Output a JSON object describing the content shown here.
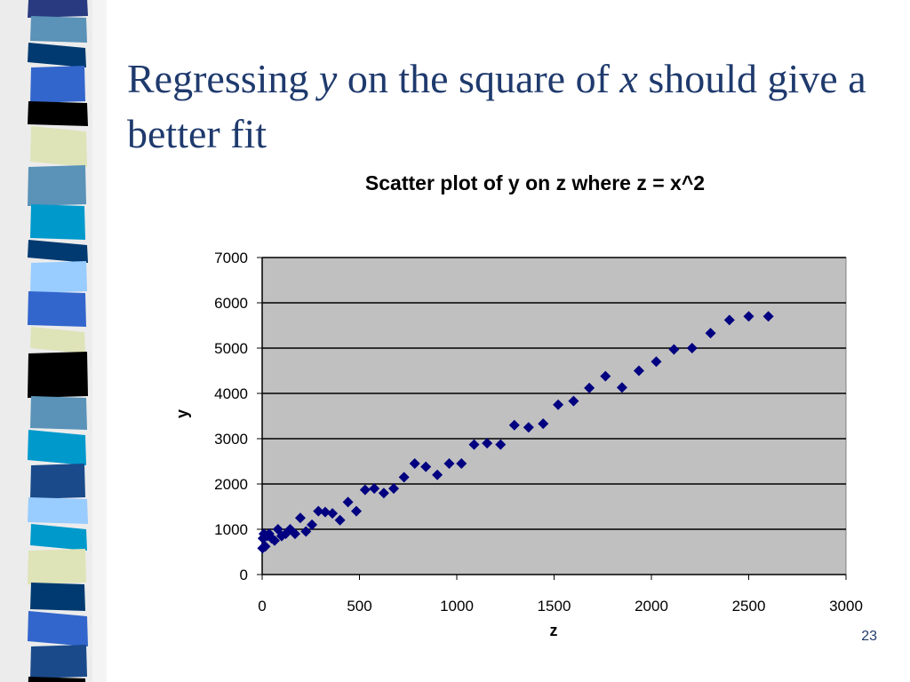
{
  "slide": {
    "title_parts": [
      {
        "text": "Regressing ",
        "italic": false
      },
      {
        "text": "y",
        "italic": true
      },
      {
        "text": " on the square of ",
        "italic": false
      },
      {
        "text": "x",
        "italic": true
      },
      {
        "text": " should give a better fit",
        "italic": false
      }
    ],
    "page_number": "23"
  },
  "theme": {
    "title_color": "#1f3a6d",
    "plot_bg": "#c0c0c0",
    "marker_color": "#000080",
    "strip_colors": [
      "#2a3a80",
      "#5a92b8",
      "#003a70",
      "#3366cc",
      "#000000",
      "#dfe3b8",
      "#0099cc",
      "#99ccff",
      "#1a4a8a"
    ]
  },
  "chart_data": {
    "type": "scatter",
    "title": "Scatter plot of y on z where z = x^2",
    "xlabel": "z",
    "ylabel": "y",
    "xlim": [
      0,
      3000
    ],
    "ylim": [
      0,
      7000
    ],
    "xticks": [
      0,
      500,
      1000,
      1500,
      2000,
      2500,
      3000
    ],
    "yticks": [
      0,
      1000,
      2000,
      3000,
      4000,
      5000,
      6000,
      7000
    ],
    "x_tick_labels": [
      "0",
      "500",
      "1000",
      "1500",
      "2000",
      "2500",
      "3000"
    ],
    "y_tick_labels": [
      "0",
      "1000",
      "2000",
      "3000",
      "4000",
      "5000",
      "6000",
      "7000"
    ],
    "grid": "horizontal",
    "legend": "none",
    "points": [
      [
        2,
        580
      ],
      [
        4,
        800
      ],
      [
        9,
        900
      ],
      [
        16,
        620
      ],
      [
        25,
        850
      ],
      [
        36,
        900
      ],
      [
        49,
        800
      ],
      [
        64,
        750
      ],
      [
        81,
        1000
      ],
      [
        100,
        850
      ],
      [
        121,
        900
      ],
      [
        144,
        1000
      ],
      [
        169,
        900
      ],
      [
        196,
        1250
      ],
      [
        225,
        950
      ],
      [
        256,
        1100
      ],
      [
        289,
        1400
      ],
      [
        324,
        1380
      ],
      [
        361,
        1350
      ],
      [
        400,
        1200
      ],
      [
        441,
        1600
      ],
      [
        484,
        1400
      ],
      [
        529,
        1870
      ],
      [
        576,
        1900
      ],
      [
        625,
        1800
      ],
      [
        676,
        1900
      ],
      [
        729,
        2150
      ],
      [
        784,
        2450
      ],
      [
        841,
        2380
      ],
      [
        900,
        2200
      ],
      [
        961,
        2450
      ],
      [
        1024,
        2450
      ],
      [
        1089,
        2870
      ],
      [
        1156,
        2900
      ],
      [
        1225,
        2870
      ],
      [
        1296,
        3300
      ],
      [
        1369,
        3250
      ],
      [
        1444,
        3330
      ],
      [
        1521,
        3750
      ],
      [
        1600,
        3830
      ],
      [
        1681,
        4120
      ],
      [
        1764,
        4380
      ],
      [
        1849,
        4130
      ],
      [
        1936,
        4500
      ],
      [
        2025,
        4700
      ],
      [
        2116,
        4970
      ],
      [
        2209,
        5000
      ],
      [
        2304,
        5330
      ],
      [
        2401,
        5620
      ],
      [
        2500,
        5700
      ],
      [
        2601,
        5700
      ]
    ]
  }
}
